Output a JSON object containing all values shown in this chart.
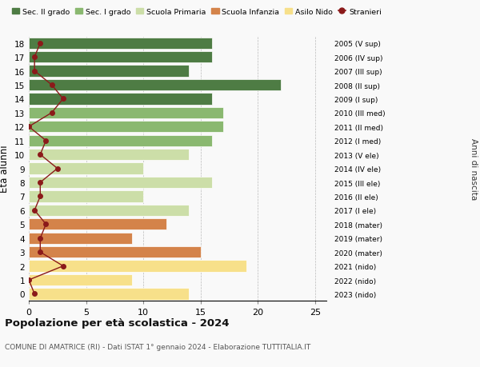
{
  "ages": [
    0,
    1,
    2,
    3,
    4,
    5,
    6,
    7,
    8,
    9,
    10,
    11,
    12,
    13,
    14,
    15,
    16,
    17,
    18
  ],
  "bar_values": [
    14,
    9,
    19,
    15,
    9,
    12,
    14,
    10,
    16,
    10,
    14,
    16,
    17,
    17,
    16,
    22,
    14,
    16,
    16
  ],
  "bar_colors": [
    "#f7e08a",
    "#f7e08a",
    "#f7e08a",
    "#d4834a",
    "#d4834a",
    "#d4834a",
    "#ccdea8",
    "#ccdea8",
    "#ccdea8",
    "#ccdea8",
    "#ccdea8",
    "#8ab870",
    "#8ab870",
    "#8ab870",
    "#4e7c44",
    "#4e7c44",
    "#4e7c44",
    "#4e7c44",
    "#4e7c44"
  ],
  "stranieri_values": [
    0.5,
    0,
    3,
    1,
    1,
    1.5,
    0.5,
    1,
    1,
    2.5,
    1,
    1.5,
    0,
    2,
    3,
    2,
    0.5,
    0.5,
    1
  ],
  "right_labels": [
    "2023 (nido)",
    "2022 (nido)",
    "2021 (nido)",
    "2020 (mater)",
    "2019 (mater)",
    "2018 (mater)",
    "2017 (I ele)",
    "2016 (II ele)",
    "2015 (III ele)",
    "2014 (IV ele)",
    "2013 (V ele)",
    "2012 (I med)",
    "2011 (II med)",
    "2010 (III med)",
    "2009 (I sup)",
    "2008 (II sup)",
    "2007 (III sup)",
    "2006 (IV sup)",
    "2005 (V sup)"
  ],
  "legend_labels": [
    "Sec. II grado",
    "Sec. I grado",
    "Scuola Primaria",
    "Scuola Infanzia",
    "Asilo Nido",
    "Stranieri"
  ],
  "legend_colors": [
    "#4e7c44",
    "#8ab870",
    "#ccdea8",
    "#d4834a",
    "#f7e08a",
    "#8b1a1a"
  ],
  "ylabel": "Età alunni",
  "right_ylabel": "Anni di nascita",
  "title": "Popolazione per età scolastica - 2024",
  "subtitle": "COMUNE DI AMATRICE (RI) - Dati ISTAT 1° gennaio 2024 - Elaborazione TUTTITALIA.IT",
  "xlim": [
    0,
    26
  ],
  "background_color": "#f9f9f9",
  "grid_color": "#bbbbbb"
}
